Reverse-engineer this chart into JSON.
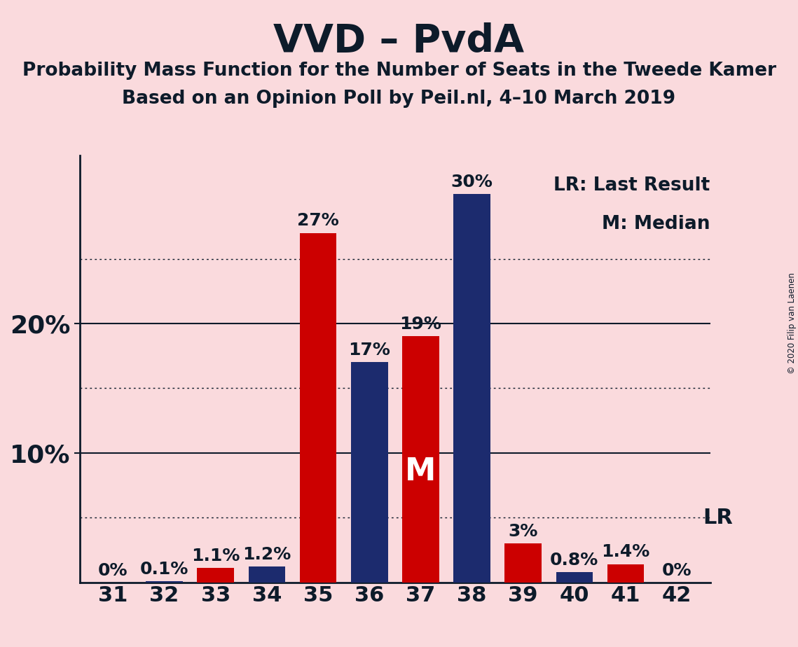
{
  "title": "VVD – PvdA",
  "subtitle1": "Probability Mass Function for the Number of Seats in the Tweede Kamer",
  "subtitle2": "Based on an Opinion Poll by Peil.nl, 4–10 March 2019",
  "copyright": "© 2020 Filip van Laenen",
  "background_color": "#FADADD",
  "bar_color_red": "#CC0000",
  "bar_color_blue": "#1C2B6E",
  "text_color": "#0D1B2A",
  "seats": [
    31,
    32,
    33,
    34,
    35,
    36,
    37,
    38,
    39,
    40,
    41,
    42
  ],
  "bar_values": [
    0.0,
    0.1,
    1.1,
    1.2,
    27.0,
    17.0,
    19.0,
    30.0,
    3.0,
    0.8,
    1.4,
    0.0
  ],
  "bar_colors": [
    "red",
    "blue",
    "red",
    "blue",
    "red",
    "blue",
    "red",
    "blue",
    "red",
    "blue",
    "red",
    "blue"
  ],
  "bar_labels": [
    "0%",
    "0.1%",
    "1.1%",
    "1.2%",
    "27%",
    "17%",
    "19%",
    "30%",
    "3%",
    "0.8%",
    "1.4%",
    "0%"
  ],
  "label_inside": [
    false,
    false,
    false,
    false,
    false,
    false,
    false,
    false,
    false,
    false,
    false,
    false
  ],
  "ylim": [
    0,
    33
  ],
  "median_idx": 6,
  "lr_idx": 11,
  "legend_text1": "LR: Last Result",
  "legend_text2": "M: Median",
  "figsize": [
    11.39,
    9.24
  ],
  "dpi": 100
}
